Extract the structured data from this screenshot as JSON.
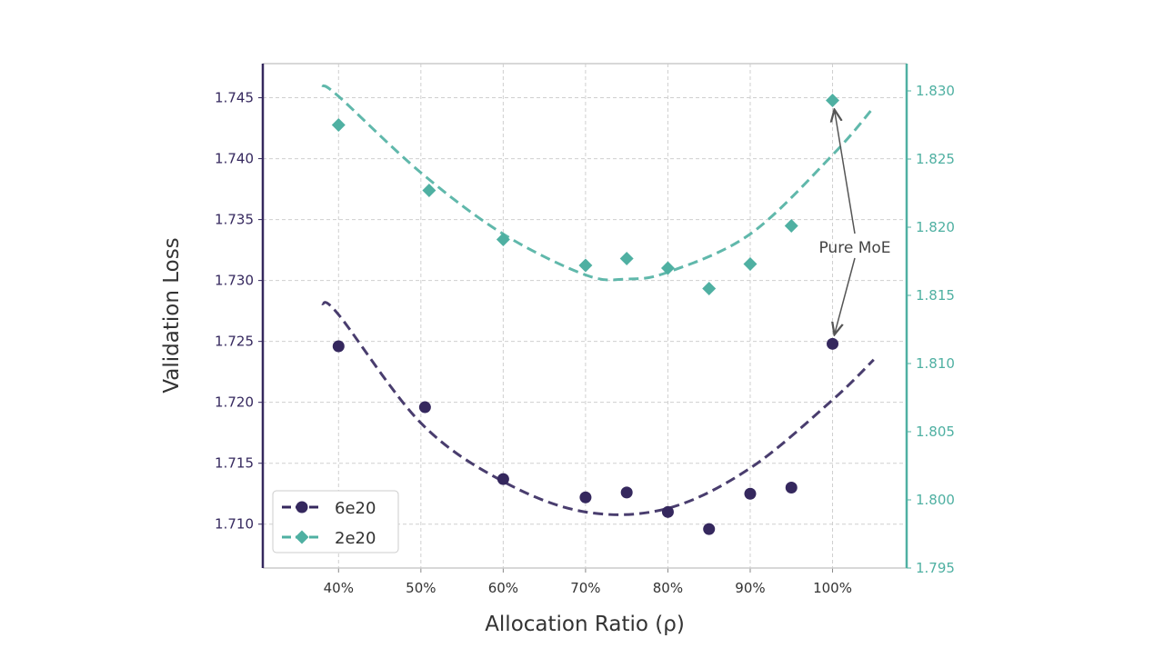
{
  "chart_data": {
    "type": "scatter",
    "title": "",
    "xlabel": "Allocation Ratio (ρ)",
    "ylabel": "Validation Loss",
    "xlim": [
      30.8,
      109
    ],
    "ylim_left": [
      1.7064,
      1.7478
    ],
    "ylim_right": [
      1.795,
      1.832
    ],
    "x_ticks": [
      40,
      50,
      60,
      70,
      80,
      90,
      100
    ],
    "x_tick_labels": [
      "40%",
      "50%",
      "60%",
      "70%",
      "80%",
      "90%",
      "100%"
    ],
    "y_ticks_left": [
      "1.710",
      "1.715",
      "1.720",
      "1.725",
      "1.730",
      "1.735",
      "1.740",
      "1.745"
    ],
    "y_ticks_right": [
      "1.795",
      "1.800",
      "1.805",
      "1.810",
      "1.815",
      "1.820",
      "1.825",
      "1.830"
    ],
    "grid": true,
    "legend_position": "bottom-left",
    "series": [
      {
        "name": "6e20",
        "axis": "left",
        "marker": "circle",
        "color": "#35285e",
        "x": [
          40,
          50.5,
          60,
          70,
          75,
          80,
          85,
          90,
          95,
          100
        ],
        "y": [
          1.7246,
          1.7196,
          1.7137,
          1.7122,
          1.7126,
          1.711,
          1.7096,
          1.7125,
          1.713,
          1.7248
        ],
        "fit": {
          "x": [
            38,
            40,
            50,
            60,
            70,
            80,
            90,
            100,
            105
          ],
          "y": [
            1.7281,
            1.7272,
            1.7183,
            1.7135,
            1.711,
            1.7113,
            1.7146,
            1.7202,
            1.7235
          ]
        }
      },
      {
        "name": "2e20",
        "axis": "right",
        "marker": "diamond",
        "color": "#4fb0a2",
        "x": [
          40,
          51,
          60,
          70,
          75,
          80,
          85,
          90,
          95,
          100
        ],
        "y": [
          1.8275,
          1.8227,
          1.8191,
          1.8172,
          1.8177,
          1.817,
          1.8155,
          1.8173,
          1.8201,
          1.8293
        ],
        "fit": {
          "x": [
            38,
            40,
            50,
            60,
            70,
            75,
            80,
            90,
            100,
            105
          ],
          "y": [
            1.8304,
            1.8296,
            1.824,
            1.8195,
            1.8165,
            1.8162,
            1.8167,
            1.8195,
            1.8253,
            1.8288
          ]
        }
      }
    ],
    "annotations": [
      {
        "text": "Pure MoE",
        "targets": [
          {
            "series": "2e20",
            "x": 100
          },
          {
            "series": "6e20",
            "x": 100
          }
        ]
      }
    ]
  }
}
